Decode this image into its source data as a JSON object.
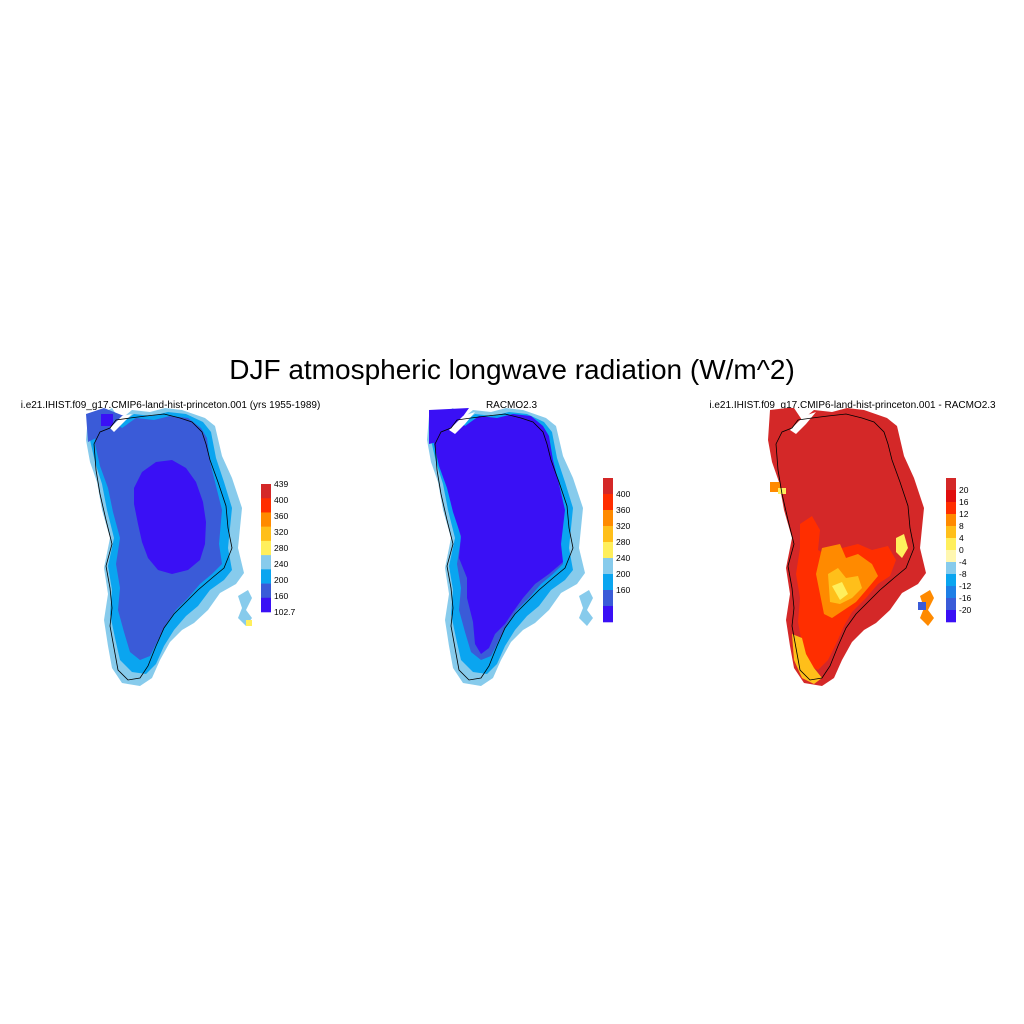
{
  "title": "DJF atmospheric longwave radiation (W/m^2)",
  "colors": {
    "levels": [
      "#3a10f5",
      "#3a5bd8",
      "#0aa5f0",
      "#87cbec",
      "#ffef5c",
      "#ffbf1a",
      "#ff8a00",
      "#ff2e00",
      "#d42828"
    ]
  },
  "panels": [
    {
      "title": "i.e21.IHIST.f09_g17.CMIP6-land-hist-princeton.001 (yrs 1955-1989)",
      "colorbar": {
        "labels": [
          "439",
          "400",
          "360",
          "320",
          "280",
          "240",
          "200",
          "160",
          "102.7"
        ],
        "endpoints": true
      }
    },
    {
      "title": "RACMO2.3",
      "colorbar": {
        "labels": [
          "400",
          "360",
          "320",
          "280",
          "240",
          "200",
          "160"
        ],
        "endpoints": false
      }
    },
    {
      "title": "i.e21.IHIST.f09_g17.CMIP6-land-hist-princeton.001 - RACMO2.3",
      "colorbar": {
        "labels": [
          "20",
          "16",
          "12",
          "8",
          "4",
          "0",
          "-4",
          "-8",
          "-12",
          "-16",
          "-20"
        ],
        "endpoints": false
      },
      "diverging_colors": [
        "#3a10f5",
        "#3a5bd8",
        "#1e7fe6",
        "#0aa5f0",
        "#87cbec",
        "#fff7b0",
        "#ffef5c",
        "#ffbf1a",
        "#ff8a00",
        "#ff2e00",
        "#e00e0e",
        "#d42828"
      ]
    }
  ]
}
